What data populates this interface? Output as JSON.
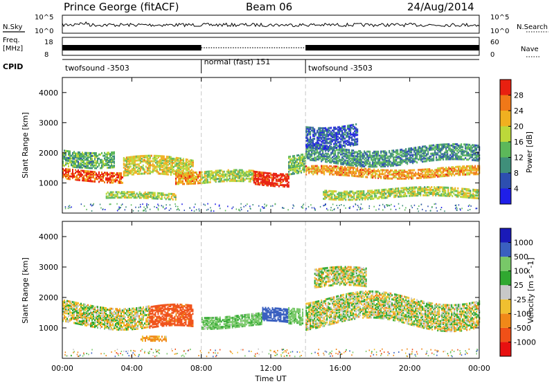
{
  "header": {
    "station": "Prince George (fitACF)",
    "beam": "Beam 06",
    "date": "24/Aug/2014"
  },
  "noise_panel": {
    "left_label": "N.Sky",
    "right_label": "N.Search",
    "left_ticks": [
      "10^5",
      "10^0"
    ],
    "right_ticks": [
      "10^5",
      "10^0"
    ]
  },
  "freq_panel": {
    "left_label_1": "Freq.",
    "left_label_2": "[MHz]",
    "right_label": "Nave",
    "left_ticks": [
      "18",
      "8"
    ],
    "right_ticks": [
      "60",
      "0"
    ]
  },
  "cpid": {
    "label": "CPID",
    "segments": [
      {
        "name": "twofsound -3503",
        "start": 0,
        "end": 8
      },
      {
        "name": "normal (fast) 151",
        "start": 8,
        "end": 14
      },
      {
        "name": "twofsound -3503",
        "start": 14,
        "end": 24
      }
    ]
  },
  "x_axis": {
    "label": "Time UT",
    "ticks": [
      "00:00",
      "04:00",
      "08:00",
      "12:00",
      "16:00",
      "20:00",
      "00:00"
    ]
  },
  "chart_data": [
    {
      "type": "heatmap",
      "title": "Power",
      "xlabel": "Time UT",
      "ylabel": "Slant Range [km]",
      "xlim": [
        0,
        24
      ],
      "ylim": [
        0,
        4500
      ],
      "y_ticks": [
        "1000",
        "2000",
        "3000",
        "4000"
      ],
      "colorbar": {
        "label": "Power [dB]",
        "ticks": [
          "28",
          "24",
          "20",
          "16",
          "12",
          "8",
          "4"
        ],
        "range": [
          0,
          30
        ],
        "colors": [
          "#1f1fe8",
          "#2d4fb0",
          "#3f8f7a",
          "#5cb85a",
          "#bcd83a",
          "#f0b020",
          "#f07818",
          "#e82010"
        ]
      },
      "scatter_bands": [
        {
          "t_start": 0.0,
          "t_end": 3.5,
          "range_center": 1300,
          "range_width": 350,
          "power": 26
        },
        {
          "t_start": 0.0,
          "t_end": 3.0,
          "range_center": 1900,
          "range_width": 500,
          "power": 12
        },
        {
          "t_start": 3.5,
          "t_end": 7.5,
          "range_center": 1500,
          "range_width": 600,
          "power": 18
        },
        {
          "t_start": 2.5,
          "t_end": 6.5,
          "range_center": 600,
          "range_width": 200,
          "power": 16
        },
        {
          "t_start": 6.5,
          "t_end": 8.0,
          "range_center": 1300,
          "range_width": 400,
          "power": 22
        },
        {
          "t_start": 8.0,
          "t_end": 11.0,
          "range_center": 1200,
          "range_width": 400,
          "power": 16
        },
        {
          "t_start": 11.0,
          "t_end": 13.0,
          "range_center": 1250,
          "range_width": 450,
          "power": 29
        },
        {
          "t_start": 13.0,
          "t_end": 14.0,
          "range_center": 1700,
          "range_width": 600,
          "power": 14
        },
        {
          "t_start": 14.0,
          "t_end": 24.0,
          "range_center": 1400,
          "range_width": 300,
          "power": 22
        },
        {
          "t_start": 14.0,
          "t_end": 24.0,
          "range_center": 1950,
          "range_width": 500,
          "power": 10
        },
        {
          "t_start": 15.0,
          "t_end": 24.0,
          "range_center": 700,
          "range_width": 300,
          "power": 16
        },
        {
          "t_start": 14.0,
          "t_end": 17.0,
          "range_center": 2700,
          "range_width": 700,
          "power": 6
        }
      ]
    },
    {
      "type": "heatmap",
      "title": "Velocity",
      "xlabel": "Time UT",
      "ylabel": "Slant Range [km]",
      "xlim": [
        0,
        24
      ],
      "ylim": [
        0,
        4500
      ],
      "y_ticks": [
        "1000",
        "2000",
        "3000",
        "4000"
      ],
      "colorbar": {
        "label": "Velocity [m s^-1]",
        "ticks": [
          "1000",
          "500",
          "100",
          "25",
          "-25",
          "-100",
          "-500",
          "-1000"
        ],
        "range": [
          -1200,
          1200
        ],
        "colors": [
          "#e81010",
          "#f05018",
          "#f08818",
          "#f0c030",
          "#c8c8c8",
          "#30a830",
          "#78c868",
          "#3a60c0",
          "#1a1ab8"
        ]
      },
      "scatter_bands": [
        {
          "t_start": 0.0,
          "t_end": 5.0,
          "range_center": 1500,
          "range_width": 700,
          "velocity": 0
        },
        {
          "t_start": 5.0,
          "t_end": 7.5,
          "range_center": 1300,
          "range_width": 700,
          "velocity": -600
        },
        {
          "t_start": 4.5,
          "t_end": 6.0,
          "range_center": 650,
          "range_width": 150,
          "velocity": -150
        },
        {
          "t_start": 8.0,
          "t_end": 11.5,
          "range_center": 1300,
          "range_width": 400,
          "velocity": 150
        },
        {
          "t_start": 11.5,
          "t_end": 13.0,
          "range_center": 1400,
          "range_width": 450,
          "velocity": 800
        },
        {
          "t_start": 13.0,
          "t_end": 13.8,
          "range_center": 1500,
          "range_width": 500,
          "velocity": 200
        },
        {
          "t_start": 14.0,
          "t_end": 24.0,
          "range_center": 1600,
          "range_width": 900,
          "velocity": 0
        },
        {
          "t_start": 14.5,
          "t_end": 17.5,
          "range_center": 2600,
          "range_width": 600,
          "velocity": 0
        }
      ]
    }
  ]
}
